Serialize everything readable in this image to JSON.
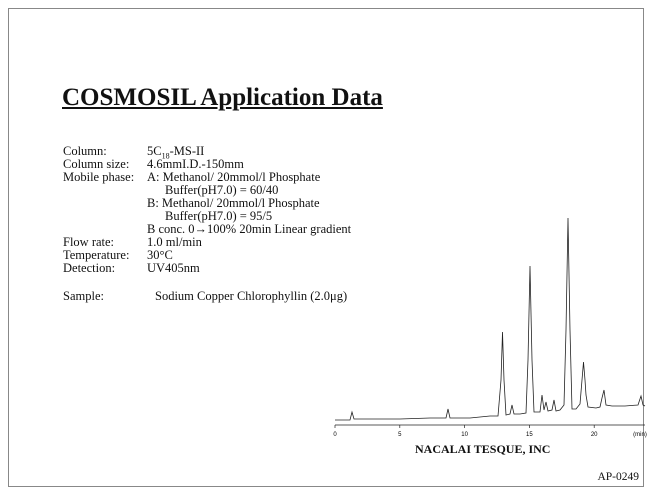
{
  "header": {
    "title": "COSMOSIL Application Data"
  },
  "conditions": [
    {
      "label": "Column:",
      "value": [
        "5C",
        "18",
        "-MS-II"
      ]
    },
    {
      "label": "Column size:",
      "value": "4.6mmI.D.-150mm"
    },
    {
      "label": "Mobile phase:",
      "value": "A: Methanol/ 20mmol/l Phosphate"
    },
    {
      "value": "Buffer(pH7.0) = 60/40"
    },
    {
      "value": "B: Methanol/ 20mmol/l Phosphate"
    },
    {
      "value": "Buffer(pH7.0) = 95/5"
    },
    {
      "value": "B conc. 0→100% 20min Linear gradient"
    },
    {
      "label": "Flow rate:",
      "value": "1.0 ml/min"
    },
    {
      "label": "Temperature:",
      "value": "30°C"
    },
    {
      "label": "Detection:",
      "value": "UV405nm"
    }
  ],
  "sample": {
    "label": "Sample:",
    "value": "Sodium Copper Chlorophyllin (2.0μg)"
  },
  "chromatogram": {
    "ticks": [
      "0",
      "5",
      "10",
      "15",
      "20"
    ],
    "unit": "(min)"
  },
  "footer": {
    "company": "NACALAI TESQUE, INC",
    "code": "AP-0249"
  }
}
